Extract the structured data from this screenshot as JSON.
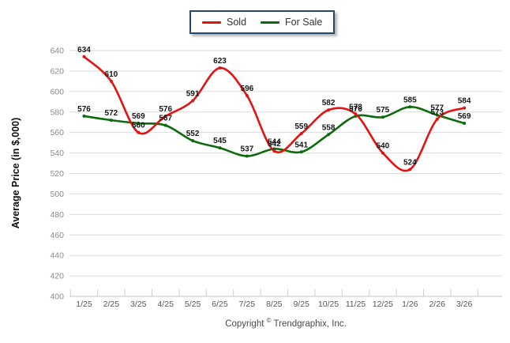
{
  "chart_data": {
    "type": "line",
    "title": "",
    "xlabel": "",
    "ylabel": "Average Price (in $,000)",
    "categories": [
      "1/25",
      "2/25",
      "3/25",
      "4/25",
      "5/25",
      "6/25",
      "7/25",
      "8/25",
      "9/25",
      "10/25",
      "11/25",
      "12/25",
      "1/26",
      "2/26",
      "3/26"
    ],
    "series": [
      {
        "name": "Sold",
        "color": "#e21313",
        "values": [
          634,
          610,
          560,
          576,
          591,
          623,
          596,
          542,
          559,
          582,
          578,
          540,
          524,
          573,
          584
        ]
      },
      {
        "name": "For Sale",
        "color": "#0c6b0c",
        "values": [
          576,
          572,
          569,
          567,
          552,
          545,
          537,
          544,
          541,
          558,
          576,
          575,
          585,
          577,
          569
        ]
      }
    ],
    "ylim": [
      400,
      640
    ],
    "ytick_step": 20,
    "grid": true,
    "legend_position": "top-center",
    "point_labels": true
  },
  "footer": {
    "copyright_prefix": "Copyright",
    "copyright_symbol": "©",
    "copyright_suffix": "Trendgraphix, Inc."
  },
  "colors": {
    "grid": "#dcdcdc",
    "axis": "#c2c2c2",
    "x_tick_mark": "#cfcfcf",
    "y_tick_label": "#8c8c8c",
    "x_tick_label": "#595959",
    "data_label": "#161616",
    "legend_border": "#25476d"
  }
}
